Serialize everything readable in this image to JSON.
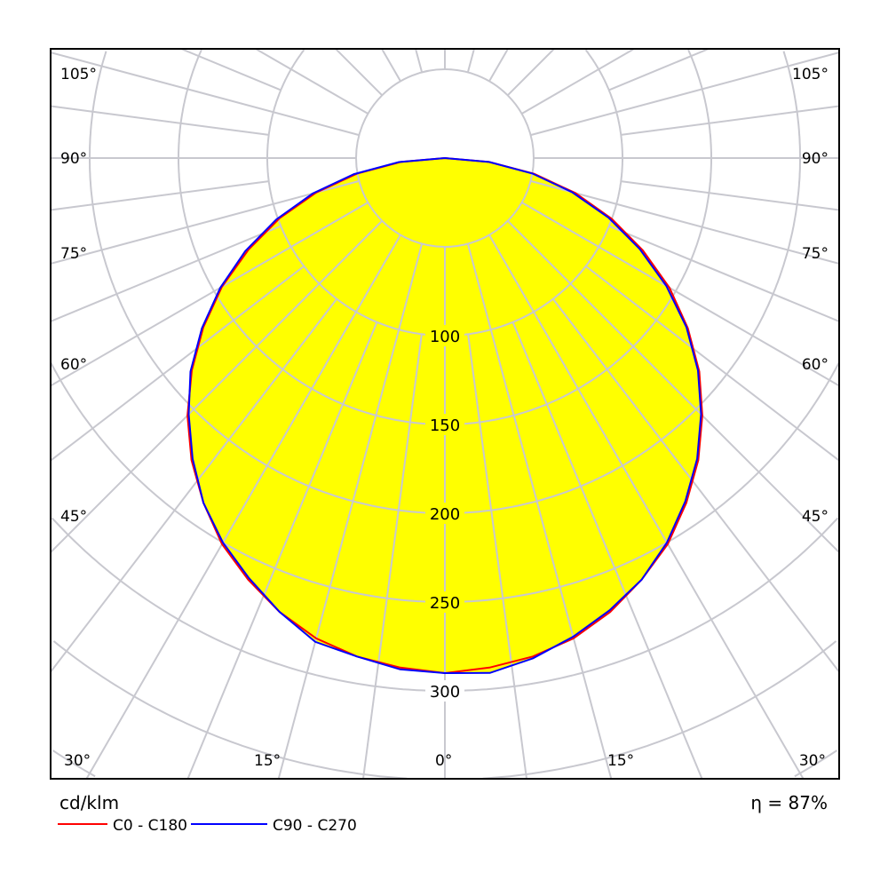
{
  "chart_data": {
    "type": "polar",
    "unit_label": "cd/klm",
    "efficiency_label": "η = 87%",
    "radial_ticks": [
      100,
      150,
      200,
      250,
      300
    ],
    "radial_tick_labels": [
      "100",
      "150",
      "200",
      "250",
      "300"
    ],
    "radial_grid_step": 50,
    "angle_labels_left": [
      "105°",
      "90°",
      "75°",
      "60°",
      "45°",
      "30°"
    ],
    "angle_labels_bottom": [
      "15°",
      "0°",
      "15°"
    ],
    "angle_labels_right": [
      "105°",
      "90°",
      "75°",
      "60°",
      "45°",
      "30°"
    ],
    "angles_deg": [
      -90,
      -85,
      -80,
      -75,
      -70,
      -65,
      -60,
      -55,
      -50,
      -45,
      -40,
      -35,
      -30,
      -25,
      -20,
      -15,
      -10,
      -5,
      0,
      5,
      10,
      15,
      20,
      25,
      30,
      35,
      40,
      45,
      50,
      55,
      60,
      65,
      70,
      75,
      80,
      85,
      90
    ],
    "series": [
      {
        "name": "C0 - C180",
        "color": "#ff0000",
        "values": [
          0,
          25,
          50,
          75,
          99,
          122,
          145,
          166,
          186,
          205,
          222,
          237,
          251,
          262,
          272,
          280,
          285,
          288,
          290,
          288,
          285,
          280,
          272,
          262,
          251,
          237,
          222,
          205,
          187,
          167,
          146,
          123,
          100,
          76,
          51,
          25,
          0
        ]
      },
      {
        "name": "C90 - C270",
        "color": "#0000ff",
        "values": [
          0,
          26,
          52,
          77,
          101,
          124,
          146,
          167,
          187,
          204,
          221,
          237,
          250,
          261,
          272,
          282,
          285,
          289,
          290,
          291,
          286,
          279,
          271,
          262,
          250,
          236,
          221,
          204,
          186,
          166,
          144,
          121,
          98,
          74,
          50,
          25,
          0
        ]
      }
    ],
    "fill_color": "#ffff00",
    "grid": true
  }
}
